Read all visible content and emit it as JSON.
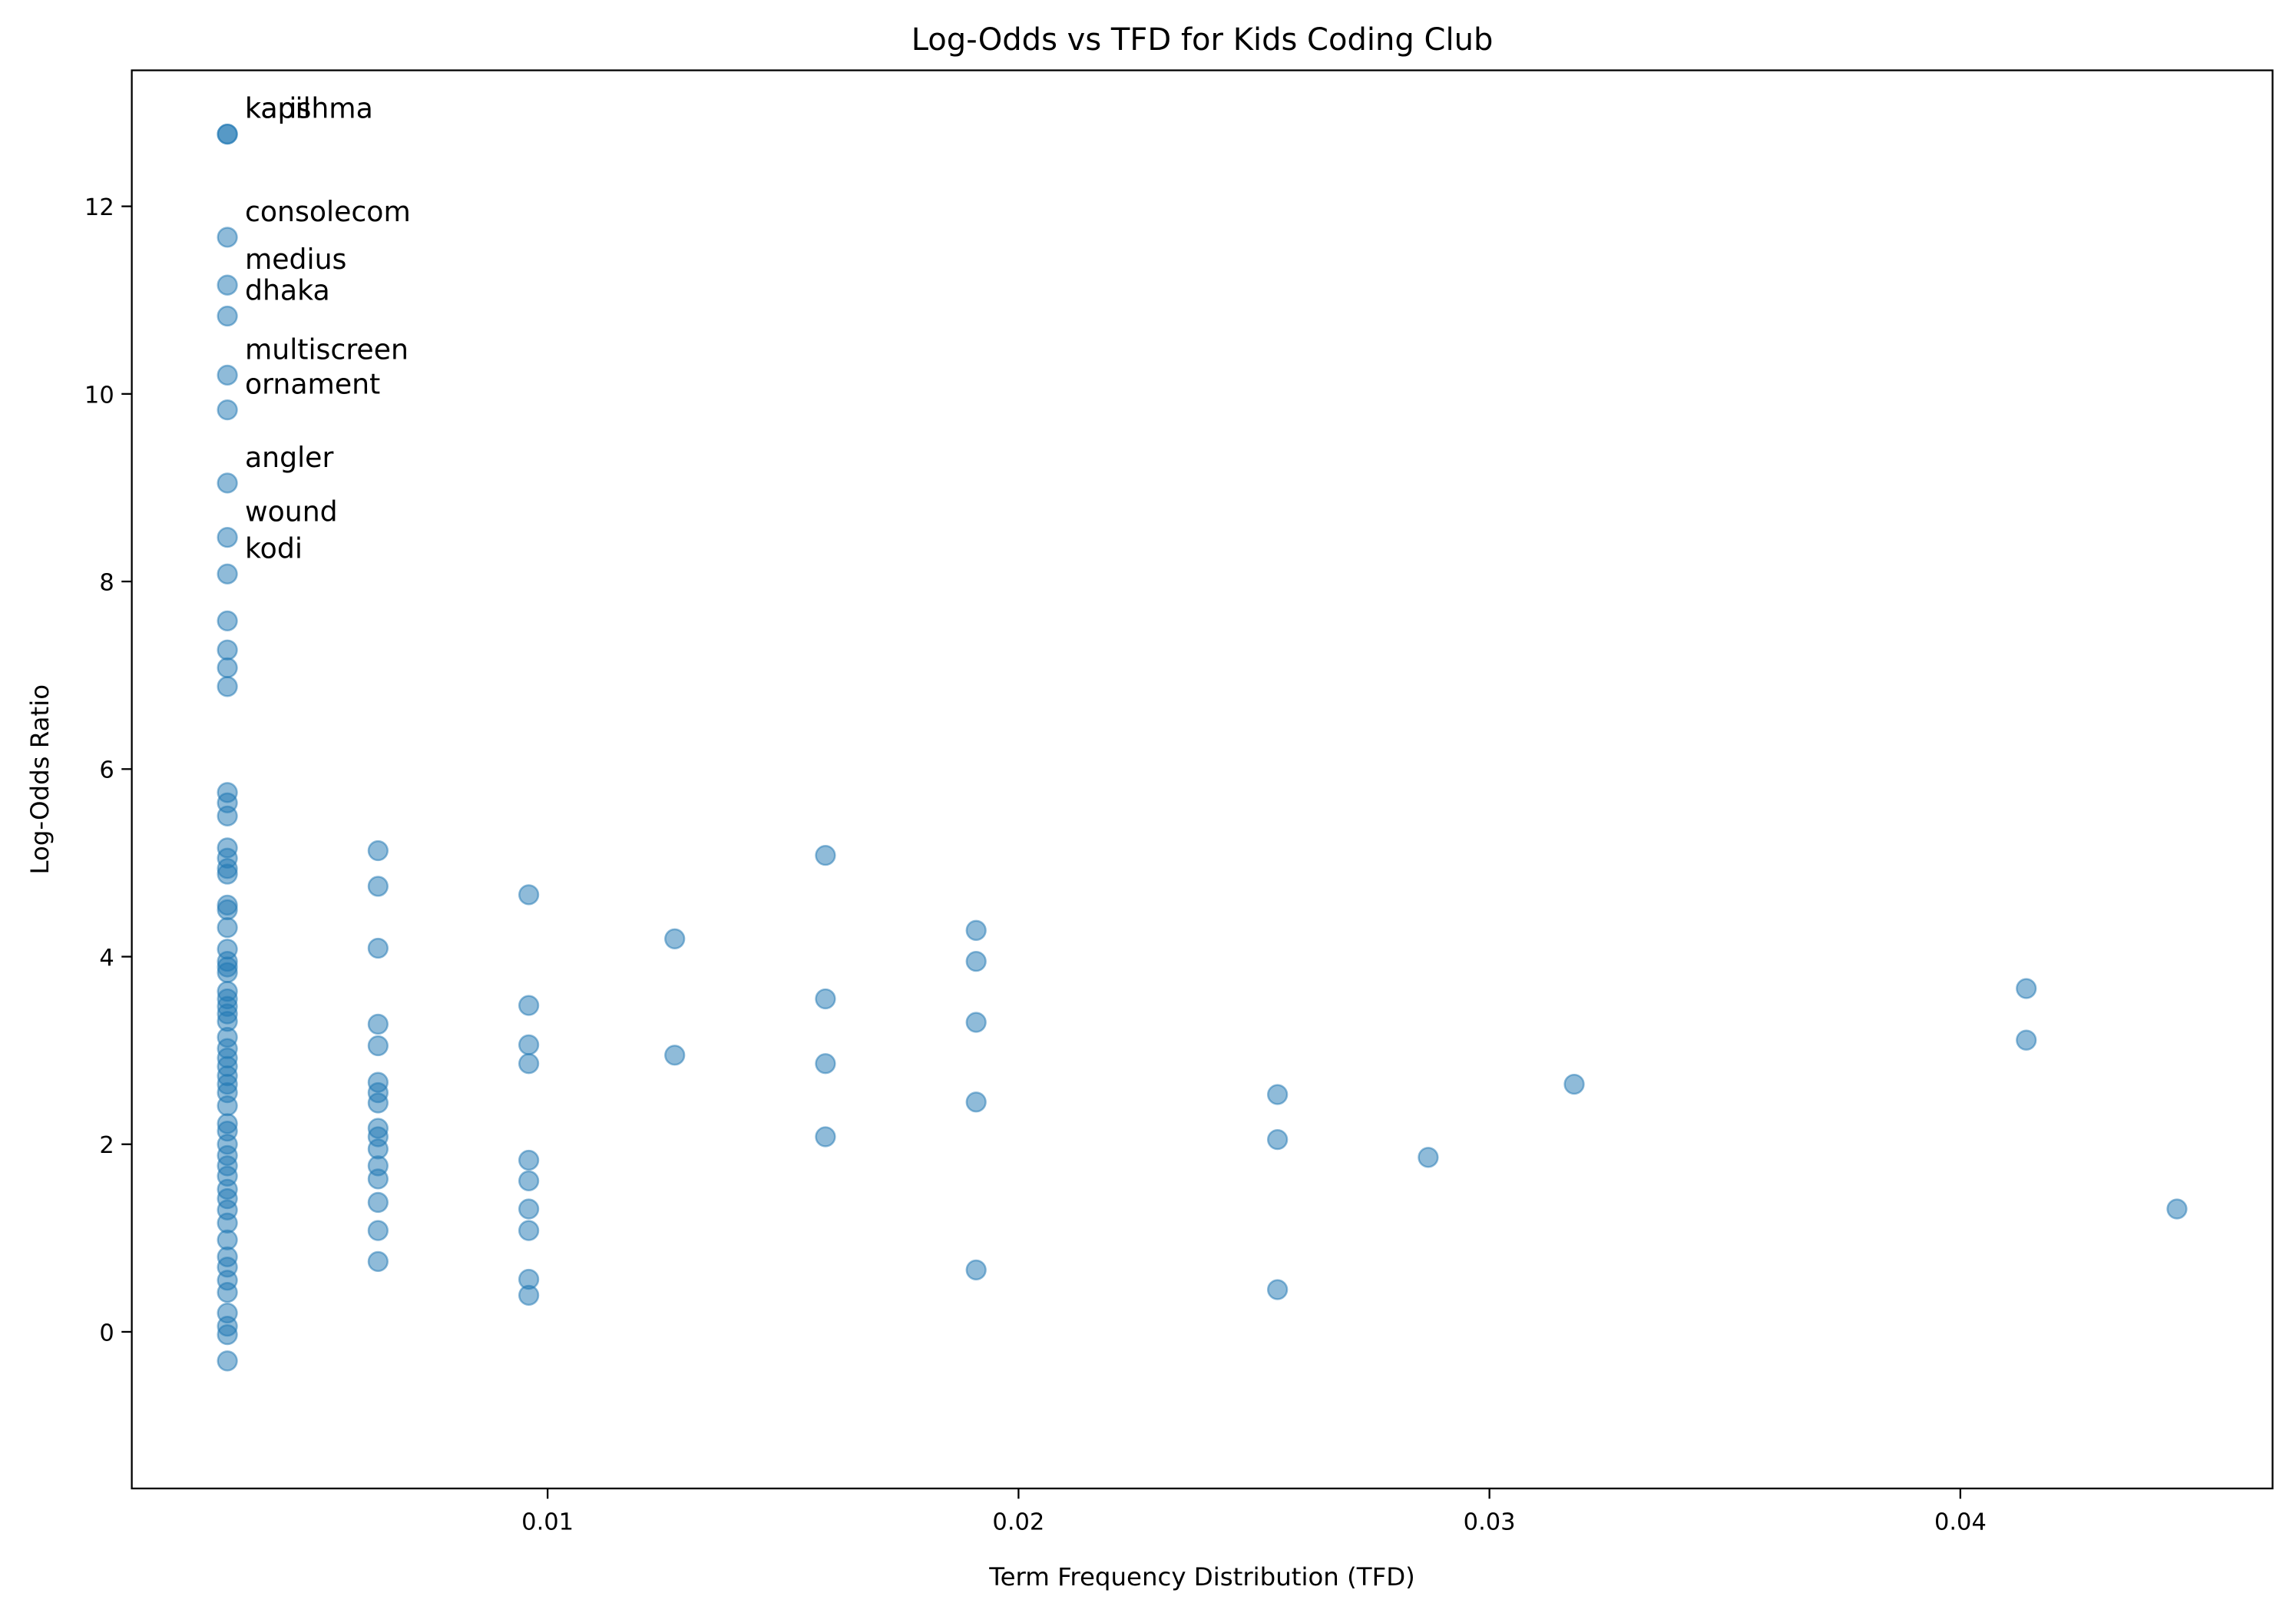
{
  "chart_data": {
    "type": "scatter",
    "title": "Log-Odds vs TFD for Kids Coding Club",
    "x_label": "Term Frequency Distribution (TFD)",
    "y_label": "Log-Odds Ratio",
    "color": "#1f77b4",
    "alpha": 0.5,
    "grid": false,
    "xlim": [
      0.00117,
      0.04663
    ],
    "ylim": [
      -1.67,
      13.45
    ],
    "xticks": [
      0.01,
      0.02,
      0.03,
      0.04
    ],
    "yticks": [
      0,
      2,
      4,
      6,
      8,
      10,
      12
    ],
    "x": [
      0.0032,
      0.0032,
      0.0032,
      0.0032,
      0.0032,
      0.0032,
      0.0032,
      0.0032,
      0.0032,
      0.0032,
      0.0032,
      0.0032,
      0.0032,
      0.0032,
      0.0032,
      0.0032,
      0.0032,
      0.0032,
      0.0032,
      0.0032,
      0.0032,
      0.0032,
      0.0032,
      0.0032,
      0.0032,
      0.0032,
      0.0032,
      0.0032,
      0.0032,
      0.0032,
      0.0032,
      0.0032,
      0.0032,
      0.0032,
      0.0032,
      0.0032,
      0.0032,
      0.0032,
      0.0032,
      0.0032,
      0.0032,
      0.0032,
      0.0032,
      0.0032,
      0.0032,
      0.0032,
      0.0032,
      0.0032,
      0.0032,
      0.0032,
      0.0032,
      0.0032,
      0.0032,
      0.0032,
      0.0032,
      0.0032,
      0.0032,
      0.0032,
      0.0032,
      0.0032,
      0.0064,
      0.0064,
      0.0064,
      0.0064,
      0.0064,
      0.0064,
      0.0064,
      0.0064,
      0.0064,
      0.0064,
      0.0064,
      0.0064,
      0.0064,
      0.0064,
      0.0064,
      0.0064,
      0.0096,
      0.0096,
      0.0096,
      0.0096,
      0.0096,
      0.0096,
      0.0096,
      0.0096,
      0.0096,
      0.0096,
      0.0127,
      0.0127,
      0.0159,
      0.0159,
      0.0159,
      0.0159,
      0.0191,
      0.0191,
      0.0191,
      0.0191,
      0.0191,
      0.0255,
      0.0255,
      0.0255,
      0.0287,
      0.0318,
      0.0414,
      0.0414,
      0.0446
    ],
    "y": [
      12.77,
      12.77,
      11.67,
      11.16,
      10.83,
      10.2,
      9.83,
      9.05,
      8.47,
      8.08,
      7.58,
      7.27,
      7.08,
      6.88,
      5.75,
      5.64,
      5.5,
      5.16,
      5.05,
      4.94,
      4.88,
      4.55,
      4.5,
      4.31,
      4.08,
      3.95,
      3.89,
      3.83,
      3.63,
      3.55,
      3.47,
      3.39,
      3.31,
      3.14,
      3.02,
      2.92,
      2.83,
      2.73,
      2.64,
      2.55,
      2.41,
      2.22,
      2.14,
      2.0,
      1.88,
      1.77,
      1.66,
      1.52,
      1.42,
      1.3,
      1.16,
      0.98,
      0.8,
      0.69,
      0.55,
      0.42,
      0.2,
      0.06,
      -0.03,
      -0.31,
      5.13,
      4.75,
      4.09,
      3.28,
      3.05,
      2.66,
      2.55,
      2.44,
      2.17,
      2.08,
      1.95,
      1.77,
      1.63,
      1.38,
      1.08,
      0.75,
      4.66,
      3.48,
      3.06,
      2.86,
      1.83,
      1.61,
      1.31,
      1.08,
      0.56,
      0.39,
      4.19,
      2.95,
      5.08,
      3.55,
      2.86,
      2.08,
      4.28,
      3.95,
      3.3,
      2.45,
      0.66,
      2.53,
      2.05,
      0.45,
      1.86,
      2.64,
      3.66,
      3.11,
      1.31
    ],
    "annotations": [
      {
        "text": "kapil",
        "x": 0.0032,
        "y": 12.77
      },
      {
        "text": "karishma",
        "x": 0.0032,
        "y": 12.77
      },
      {
        "text": "consolecom",
        "x": 0.0032,
        "y": 11.67
      },
      {
        "text": "medius",
        "x": 0.0032,
        "y": 11.16
      },
      {
        "text": "dhaka",
        "x": 0.0032,
        "y": 10.83
      },
      {
        "text": "multiscreen",
        "x": 0.0032,
        "y": 10.2
      },
      {
        "text": "ornament",
        "x": 0.0032,
        "y": 9.83
      },
      {
        "text": "angler",
        "x": 0.0032,
        "y": 9.05
      },
      {
        "text": "wound",
        "x": 0.0032,
        "y": 8.47
      },
      {
        "text": "kodi",
        "x": 0.0032,
        "y": 8.08
      }
    ]
  }
}
